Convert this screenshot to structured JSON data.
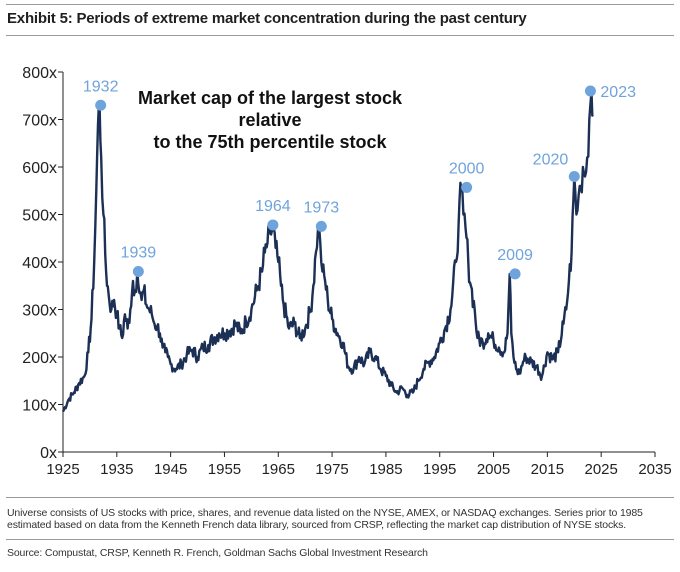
{
  "header": {
    "exhibit_title": "Exhibit 5: Periods of extreme market concentration during the past century"
  },
  "chart_data": {
    "type": "line",
    "title": "Market cap of the largest stock relative to the 75th percentile stock",
    "title_lines": [
      "Market cap of the largest stock relative",
      "to the 75th percentile stock"
    ],
    "xlabel": "",
    "ylabel": "",
    "xlim": [
      1925,
      2035
    ],
    "ylim": [
      0,
      800
    ],
    "x_ticks": [
      1925,
      1935,
      1945,
      1955,
      1965,
      1975,
      1985,
      1995,
      2005,
      2015,
      2025,
      2035
    ],
    "y_ticks": [
      0,
      100,
      200,
      300,
      400,
      500,
      600,
      700,
      800
    ],
    "y_tick_labels": [
      "0x",
      "100x",
      "200x",
      "300x",
      "400x",
      "500x",
      "600x",
      "700x",
      "800x"
    ],
    "grid": false,
    "line_color": "#1c2f55",
    "marker_color": "#6fa3dc",
    "series": [
      {
        "name": "Largest stock / 75th percentile stock",
        "x": [
          1925,
          1926,
          1927,
          1928,
          1929,
          1929.7,
          1930.3,
          1930.8,
          1931.2,
          1931.5,
          1931.8,
          1932.1,
          1932.5,
          1933,
          1933.5,
          1934,
          1934.5,
          1935,
          1935.5,
          1936,
          1936.5,
          1937,
          1937.5,
          1938,
          1938.4,
          1938.8,
          1939.2,
          1939.6,
          1940,
          1940.5,
          1941,
          1941.5,
          1942,
          1942.5,
          1943,
          1943.5,
          1944,
          1944.5,
          1945,
          1946,
          1947,
          1948,
          1949,
          1950,
          1951,
          1952,
          1953,
          1954,
          1955,
          1956,
          1957,
          1958,
          1959,
          1960,
          1961,
          1962,
          1962.5,
          1963,
          1963.5,
          1964,
          1964.5,
          1965,
          1965.5,
          1966,
          1967,
          1968,
          1969,
          1970,
          1971,
          1971.5,
          1972,
          1972.4,
          1972.8,
          1973.2,
          1973.7,
          1974.2,
          1975,
          1976,
          1977,
          1978,
          1979,
          1980,
          1981,
          1982,
          1983,
          1984,
          1985,
          1986,
          1987,
          1988,
          1989,
          1990,
          1991,
          1992,
          1993,
          1994,
          1995,
          1996,
          1997,
          1998,
          1998.5,
          1999,
          1999.4,
          1999.8,
          2000.3,
          2000.8,
          2001.5,
          2002,
          2003,
          2004,
          2005,
          2006,
          2007,
          2007.6,
          2008,
          2008.3,
          2008.7,
          2009.2,
          2009.8,
          2010.5,
          2011,
          2012,
          2013,
          2014,
          2015,
          2016,
          2017,
          2018,
          2018.5,
          2019,
          2019.5,
          2020,
          2020.4,
          2020.8,
          2021.2,
          2021.6,
          2022,
          2022.4,
          2022.8,
          2023.2,
          2023.5
        ],
        "values": [
          85,
          110,
          125,
          145,
          160,
          210,
          280,
          400,
          560,
          690,
          730,
          620,
          500,
          380,
          330,
          300,
          320,
          290,
          260,
          240,
          290,
          260,
          300,
          360,
          340,
          380,
          335,
          320,
          340,
          310,
          300,
          290,
          270,
          265,
          250,
          220,
          210,
          200,
          185,
          175,
          185,
          205,
          215,
          200,
          220,
          225,
          240,
          250,
          250,
          255,
          270,
          250,
          275,
          300,
          340,
          380,
          420,
          440,
          460,
          470,
          430,
          400,
          350,
          310,
          260,
          270,
          240,
          260,
          300,
          350,
          420,
          475,
          440,
          380,
          360,
          320,
          280,
          250,
          230,
          180,
          175,
          200,
          185,
          210,
          200,
          175,
          160,
          140,
          125,
          135,
          120,
          125,
          150,
          175,
          190,
          200,
          230,
          260,
          300,
          400,
          480,
          555,
          500,
          470,
          400,
          350,
          300,
          240,
          230,
          250,
          235,
          220,
          210,
          250,
          375,
          250,
          200,
          175,
          165,
          190,
          200,
          190,
          180,
          160,
          210,
          195,
          210,
          270,
          300,
          360,
          420,
          580,
          500,
          540,
          560,
          600,
          580,
          620,
          700,
          760,
          710
        ]
      }
    ],
    "annotations": [
      {
        "label": "1932",
        "x": 1932,
        "y": 730
      },
      {
        "label": "1939",
        "x": 1939,
        "y": 380
      },
      {
        "label": "1964",
        "x": 1964,
        "y": 478
      },
      {
        "label": "1973",
        "x": 1973,
        "y": 475
      },
      {
        "label": "2000",
        "x": 2000,
        "y": 557
      },
      {
        "label": "2009",
        "x": 2009,
        "y": 375
      },
      {
        "label": "2020",
        "x": 2020,
        "y": 580
      },
      {
        "label": "2023",
        "x": 2023,
        "y": 760
      }
    ]
  },
  "footer": {
    "note": "Universe consists of US stocks with price, shares, and revenue data listed on the NYSE, AMEX, or NASDAQ exchanges. Series prior to 1985 estimated based on data from the Kenneth French data library, sourced from CRSP, reflecting the market cap distribution of NYSE stocks.",
    "source": "Source: Compustat, CRSP, Kenneth R. French, Goldman Sachs Global Investment Research"
  }
}
